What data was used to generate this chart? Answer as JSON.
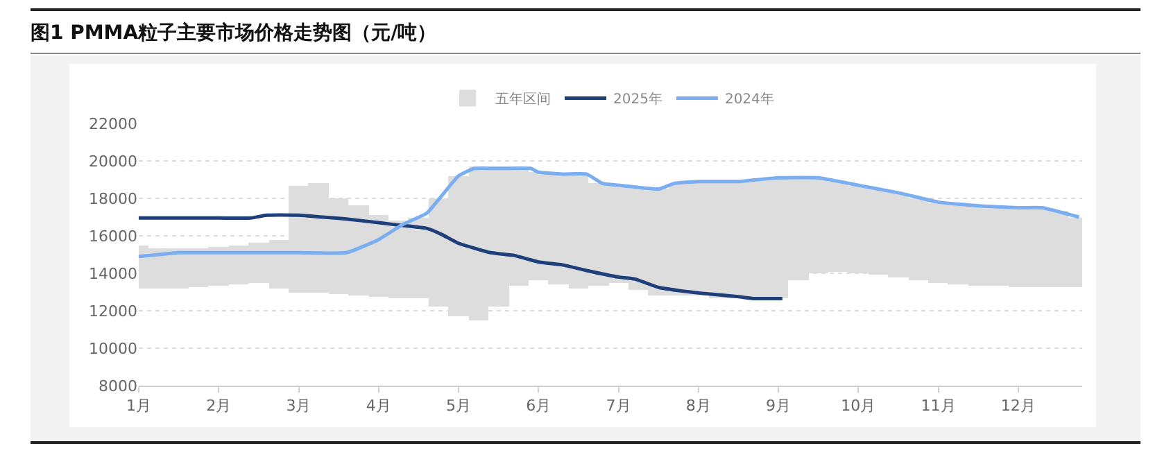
{
  "chart_data": {
    "type": "line",
    "title": "图1   PMMA粒子主要市场价格走势图（元/吨）",
    "xlim": [
      1,
      12.8
    ],
    "xticks": [
      {
        "value": 1,
        "label": "1月"
      },
      {
        "value": 2,
        "label": "2月"
      },
      {
        "value": 3,
        "label": "3月"
      },
      {
        "value": 4,
        "label": "4月"
      },
      {
        "value": 5,
        "label": "5月"
      },
      {
        "value": 6,
        "label": "6月"
      },
      {
        "value": 7,
        "label": "7月"
      },
      {
        "value": 8,
        "label": "8月"
      },
      {
        "value": 9,
        "label": "9月"
      },
      {
        "value": 10,
        "label": "10月"
      },
      {
        "value": 11,
        "label": "11月"
      },
      {
        "value": 12,
        "label": "12月"
      }
    ],
    "ylim": [
      8000,
      22000
    ],
    "yticks": [
      8000,
      10000,
      12000,
      14000,
      16000,
      18000,
      20000,
      22000
    ],
    "grid": "y",
    "legend": "top",
    "marker": "none",
    "line_style": "solid",
    "series": [
      {
        "name": "五年区间",
        "type": "bar",
        "color": "#dddddd",
        "x": [
          1,
          1.25,
          1.5,
          1.75,
          2,
          2.25,
          2.5,
          2.75,
          3,
          3.25,
          3.5,
          3.75,
          4,
          4.25,
          4.5,
          4.75,
          5,
          5.25,
          5.5,
          5.75,
          6,
          6.25,
          6.5,
          6.75,
          7,
          7.25,
          7.5,
          7.75,
          8,
          8.25,
          8.5,
          8.75,
          9,
          9.25,
          9.5,
          9.75,
          10,
          10.25,
          10.5,
          10.75,
          11,
          11.25,
          11.5,
          11.75,
          12,
          12.25,
          12.5,
          12.75
        ],
        "base": [
          13200,
          13200,
          13200,
          13250,
          13300,
          13400,
          13450,
          13200,
          13000,
          12950,
          12900,
          12850,
          12750,
          12700,
          12650,
          12200,
          11700,
          11500,
          12200,
          13300,
          13600,
          13400,
          13200,
          13300,
          13500,
          13100,
          12800,
          12800,
          12800,
          12700,
          12700,
          12650,
          12650,
          13600,
          14000,
          14050,
          14000,
          13900,
          13800,
          13600,
          13500,
          13400,
          13350,
          13300,
          13250,
          13250,
          13250,
          13250
        ],
        "values": [
          2300,
          2100,
          2100,
          2050,
          2100,
          2100,
          2150,
          2600,
          5700,
          5850,
          5100,
          4750,
          4350,
          4100,
          4350,
          5800,
          7500,
          8200,
          7500,
          6400,
          5800,
          5900,
          6100,
          5500,
          5200,
          5500,
          5700,
          6000,
          6100,
          6200,
          6250,
          6400,
          6450,
          5500,
          5100,
          4850,
          4700,
          4600,
          4500,
          4400,
          4300,
          4300,
          4300,
          4250,
          4250,
          4250,
          4050,
          3750
        ]
      },
      {
        "name": "2025年",
        "color": "#1f3f7a",
        "x": [
          1,
          2,
          2.4,
          2.6,
          3,
          3.3,
          3.6,
          4,
          4.3,
          4.6,
          4.8,
          5,
          5.4,
          5.7,
          6,
          6.3,
          6.6,
          7,
          7.2,
          7.5,
          7.8,
          8,
          8.5,
          8.7,
          9.05
        ],
        "values": [
          16950,
          16950,
          16950,
          17100,
          17100,
          17000,
          16900,
          16700,
          16550,
          16400,
          16050,
          15600,
          15100,
          14950,
          14600,
          14450,
          14150,
          13800,
          13700,
          13250,
          13050,
          12950,
          12750,
          12650,
          12650
        ]
      },
      {
        "name": "2024年",
        "color": "#7aaef0",
        "x": [
          1,
          1.5,
          2,
          3,
          3.6,
          4,
          4.3,
          4.6,
          5,
          5.2,
          5.5,
          5.9,
          6,
          6.3,
          6.6,
          6.8,
          7,
          7.5,
          7.7,
          8,
          8.5,
          9,
          9.5,
          10,
          10.5,
          11,
          11.5,
          12,
          12.3,
          12.76
        ],
        "values": [
          14900,
          15100,
          15100,
          15100,
          15100,
          15800,
          16600,
          17200,
          19200,
          19600,
          19600,
          19600,
          19400,
          19300,
          19300,
          18800,
          18700,
          18500,
          18800,
          18900,
          18900,
          19100,
          19100,
          18700,
          18300,
          17800,
          17600,
          17500,
          17500,
          17000
        ]
      }
    ]
  }
}
